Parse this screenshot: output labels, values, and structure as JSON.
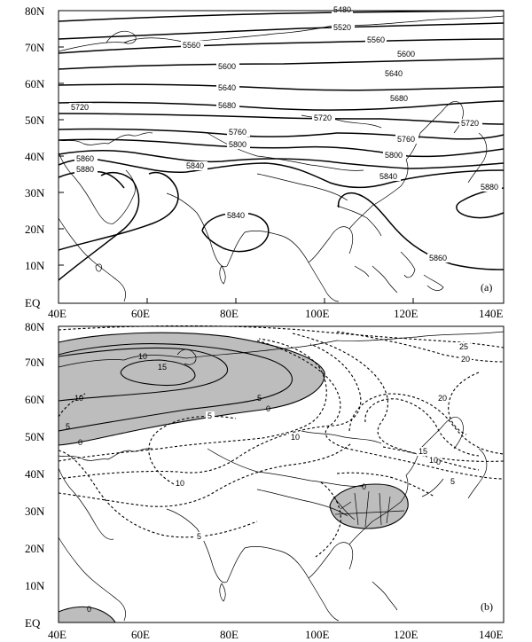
{
  "figure": {
    "lon_ticks": [
      "40E",
      "60E",
      "80E",
      "100E",
      "120E",
      "140E"
    ],
    "lat_ticks": [
      "EQ",
      "10N",
      "20N",
      "30N",
      "40N",
      "50N",
      "60N",
      "70N",
      "80N"
    ],
    "panel_a": {
      "label": "(a)",
      "contour_type": "solid",
      "contour_labels": [
        "5480",
        "5520",
        "5560",
        "5600",
        "5640",
        "5680",
        "5720",
        "5720",
        "5760",
        "5760",
        "5800",
        "5800",
        "5840",
        "5840",
        "5840",
        "5860",
        "5860",
        "5880",
        "5880"
      ]
    },
    "panel_b": {
      "label": "(b)",
      "contour_type": "dashed (positive) / solid (zero and negative in shaded area)",
      "shading_color": "#bdbdbd",
      "contour_labels": [
        "10",
        "15",
        "10",
        "5",
        "0",
        "5",
        "0",
        "5",
        "10",
        "10",
        "5",
        "0",
        "20",
        "25",
        "20",
        "15",
        "10",
        "5",
        "0",
        "0"
      ]
    }
  }
}
